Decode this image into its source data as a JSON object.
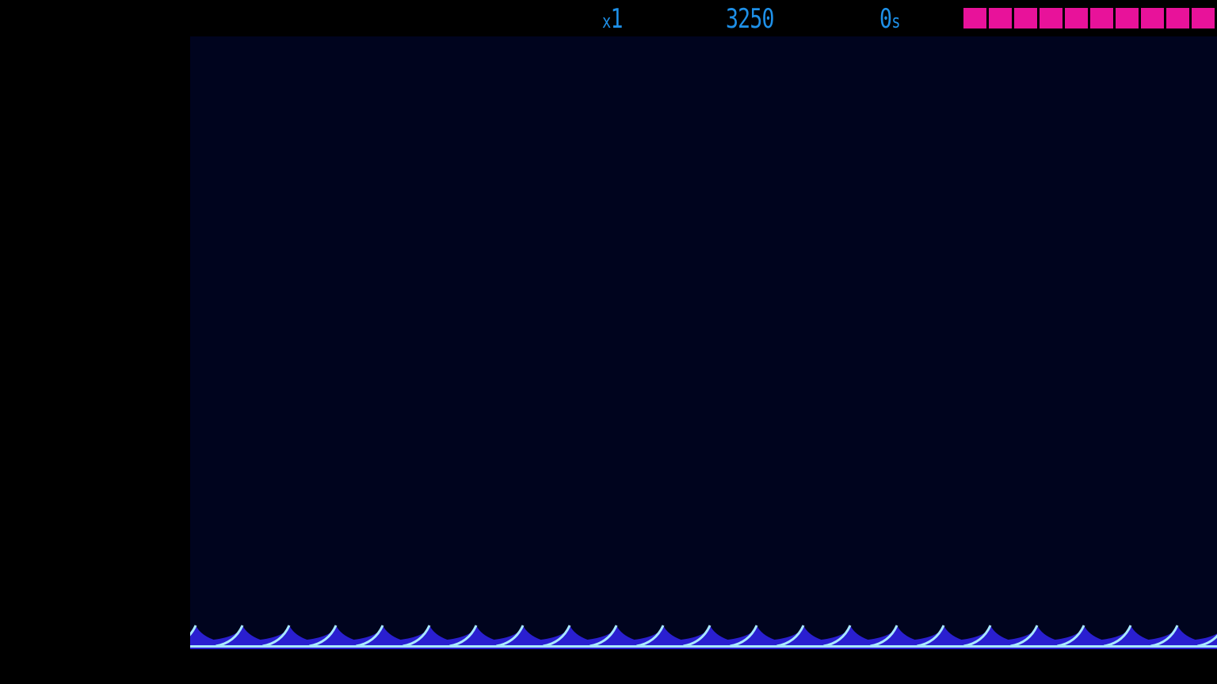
{
  "hud": {
    "multiplier_prefix": "x",
    "multiplier_value": "1",
    "score": "3250",
    "timer_value": "0",
    "timer_unit": "s",
    "health": {
      "filled_segments": 10,
      "total_segments": 10
    }
  },
  "colors": {
    "hud_text": "#1e90e8",
    "health": "#e8129a",
    "playfield_bg": "#00041e",
    "wave_dark": "#2a1fd0",
    "wave_light": "#a8e8ff"
  },
  "icons": [
    "wave-hazard-icon"
  ]
}
